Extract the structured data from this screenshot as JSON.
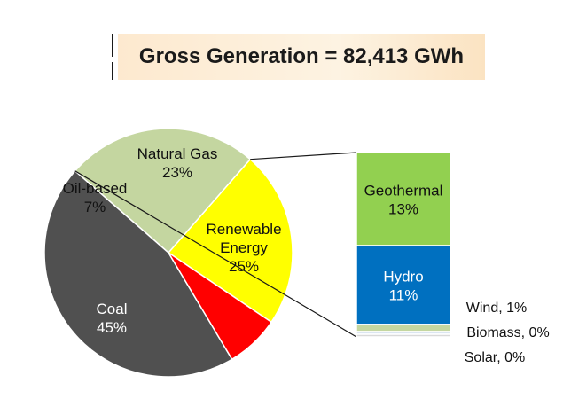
{
  "title": "Gross Generation = 82,413 GWh",
  "chart_data": [
    {
      "type": "pie",
      "slices": [
        {
          "label": "Natural Gas",
          "pct_label": "23%",
          "value": 23,
          "color": "#ffff00"
        },
        {
          "label": "Renewable Energy",
          "pct_label": "25%",
          "value": 25,
          "color": "#c4d6a0"
        },
        {
          "label": "Coal",
          "pct_label": "45%",
          "value": 45,
          "color": "#505050"
        },
        {
          "label": "Oil-based",
          "pct_label": "7%",
          "value": 7,
          "color": "#ff0000"
        }
      ]
    },
    {
      "type": "bar",
      "stacked": true,
      "breakdown_of": "Renewable Energy",
      "segments": [
        {
          "label": "Geothermal",
          "pct_label": "13%",
          "value": 13,
          "color": "#92d050"
        },
        {
          "label": "Hydro",
          "pct_label": "11%",
          "value": 11,
          "color": "#0070c0"
        },
        {
          "label": "Wind, 1%",
          "value": 1,
          "color": "#c4d6a0"
        },
        {
          "label": "Biomass, 0%",
          "value": 0,
          "color": "#dbe5f1"
        },
        {
          "label": "Solar, 0%",
          "value": 0,
          "color": "#d9d9d9"
        }
      ]
    }
  ]
}
